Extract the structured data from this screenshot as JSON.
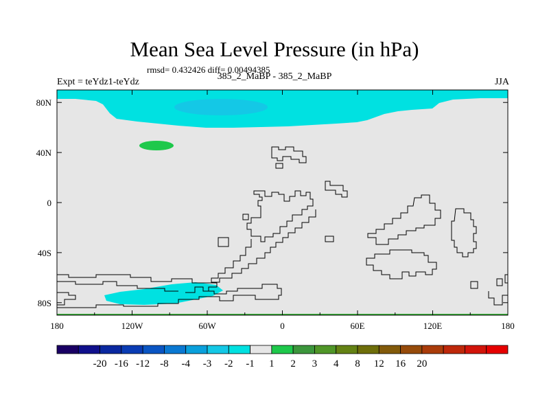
{
  "chart_data": {
    "type": "heatmap",
    "title": "Mean Sea Level Pressure (in hPa)",
    "stats_text": "rmsd= 0.432426 diff= 0.00494385",
    "experiment_label": "Expt = teYdz1-teYdz",
    "case_label": "385_2_MaBP - 385_2_MaBP",
    "season": "JJA",
    "x_ticks": [
      {
        "value": -180,
        "label": "180"
      },
      {
        "value": -120,
        "label": "120W"
      },
      {
        "value": -60,
        "label": "60W"
      },
      {
        "value": 0,
        "label": "0"
      },
      {
        "value": 60,
        "label": "60E"
      },
      {
        "value": 120,
        "label": "120E"
      },
      {
        "value": 180,
        "label": "180"
      }
    ],
    "y_ticks": [
      {
        "value": 80,
        "label": "80N"
      },
      {
        "value": 40,
        "label": "40N"
      },
      {
        "value": 0,
        "label": "0"
      },
      {
        "value": -40,
        "label": "40S"
      },
      {
        "value": -80,
        "label": "80S"
      }
    ],
    "xlim": [
      -180,
      180
    ],
    "ylim": [
      -90,
      90
    ],
    "colorbar": {
      "colors": [
        "#1a0064",
        "#10108c",
        "#0a28a0",
        "#0a3cb4",
        "#0a55c3",
        "#0a78d2",
        "#0aa0dc",
        "#14c8e6",
        "#00e1e1",
        "#e6e6e6",
        "#1ec84b",
        "#3c963c",
        "#509628",
        "#648214",
        "#6e6e0a",
        "#825a0a",
        "#964b0a",
        "#aa3c0a",
        "#be280a",
        "#d2140a",
        "#e60000"
      ],
      "labels": [
        "-20",
        "-16",
        "-12",
        "-8",
        "-4",
        "-3",
        "-2",
        "-1",
        "1",
        "2",
        "3",
        "4",
        "8",
        "12",
        "16",
        "20"
      ]
    },
    "background_level": "-1 to 1",
    "features": [
      {
        "name": "arctic-low",
        "level": "-2 to -1",
        "color": "#00e1e1"
      },
      {
        "name": "arctic-low-core",
        "level": "-3 to -2",
        "color": "#14c8e6"
      },
      {
        "name": "pacific-high",
        "level": "1 to 2",
        "color": "#1ec84b"
      },
      {
        "name": "antarctic-low",
        "level": "-2 to -1",
        "color": "#00e1e1"
      }
    ]
  }
}
